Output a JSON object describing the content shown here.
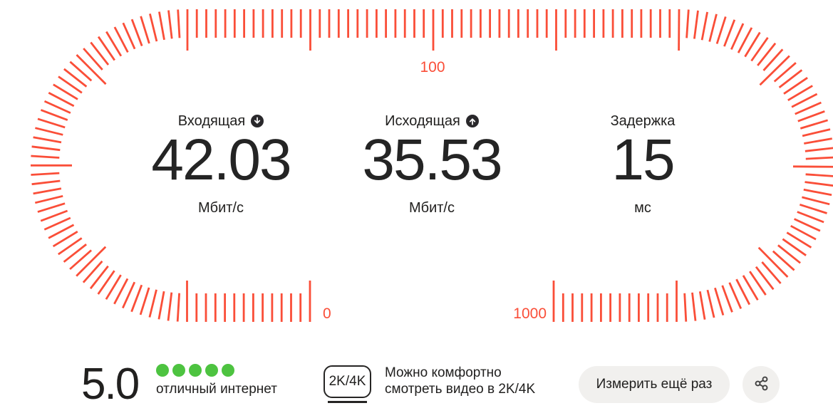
{
  "gauge": {
    "tick_color": "#fa4e38",
    "label_color": "#fa4e38",
    "scale_labels": {
      "start": "0",
      "mid": "100",
      "end": "1000"
    }
  },
  "metrics": [
    {
      "label": "Входящая",
      "icon": "download-circle-icon",
      "value": "42.03",
      "unit": "Мбит/с"
    },
    {
      "label": "Исходящая",
      "icon": "upload-circle-icon",
      "value": "35.53",
      "unit": "Мбит/с"
    },
    {
      "label": "Задержка",
      "icon": "",
      "value": "15",
      "unit": "мс"
    }
  ],
  "rating": {
    "score": "5.0",
    "dots": 5,
    "dot_color": "#4dc340",
    "caption": "отличный интернет"
  },
  "quality": {
    "badge": "2K/4K",
    "line1": "Можно комфортно",
    "line2": "смотреть видео в 2K/4K"
  },
  "actions": {
    "measure_again": "Измерить ещё раз",
    "share_icon": "share-icon"
  },
  "colors": {
    "text": "#21201f",
    "button_bg": "#f1f0ee"
  }
}
